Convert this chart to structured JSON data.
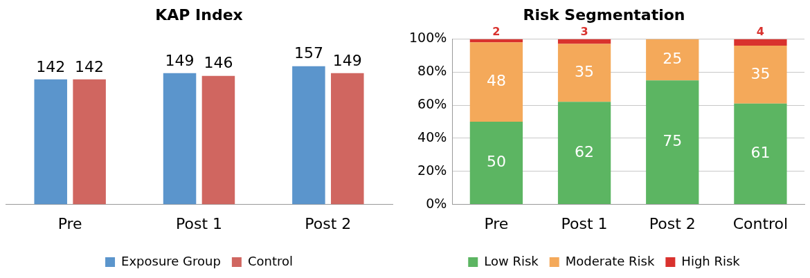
{
  "chart_data": [
    {
      "type": "bar",
      "title": "KAP Index",
      "categories": [
        "Pre",
        "Post 1",
        "Post 2"
      ],
      "series": [
        {
          "name": "Exposure Group",
          "color": "#5b95cc",
          "values": [
            142,
            149,
            157
          ]
        },
        {
          "name": "Control",
          "color": "#d06660",
          "values": [
            142,
            146,
            149
          ]
        }
      ],
      "tick_labels": "x",
      "data_labels": true,
      "legend": "bottom"
    },
    {
      "type": "bar",
      "title": "Risk Segmentation",
      "categories": [
        "Pre",
        "Post 1",
        "Post 2",
        "Control"
      ],
      "stacked": true,
      "series": [
        {
          "name": "Low Risk",
          "color": "#5cb562",
          "values": [
            50,
            62,
            75,
            61
          ],
          "value_labels": [
            "50",
            "62",
            "75",
            "61"
          ]
        },
        {
          "name": "Moderate Risk",
          "color": "#f4a95a",
          "values": [
            48,
            35,
            25,
            35
          ],
          "value_labels": [
            "48",
            "35",
            "25",
            "35"
          ]
        },
        {
          "name": "High Risk",
          "color": "#d9322e",
          "values": [
            2,
            3,
            0,
            4
          ],
          "value_labels": [
            "2",
            "3",
            null,
            "4"
          ]
        }
      ],
      "ylim": [
        0,
        100
      ],
      "yticks": [
        {
          "value": 0,
          "label": "0%"
        },
        {
          "value": 20,
          "label": "20%"
        },
        {
          "value": 40,
          "label": "40%"
        },
        {
          "value": 60,
          "label": "60%"
        },
        {
          "value": 80,
          "label": "80%"
        },
        {
          "value": 100,
          "label": "100%"
        }
      ],
      "grid": "y",
      "legend": "bottom"
    }
  ]
}
